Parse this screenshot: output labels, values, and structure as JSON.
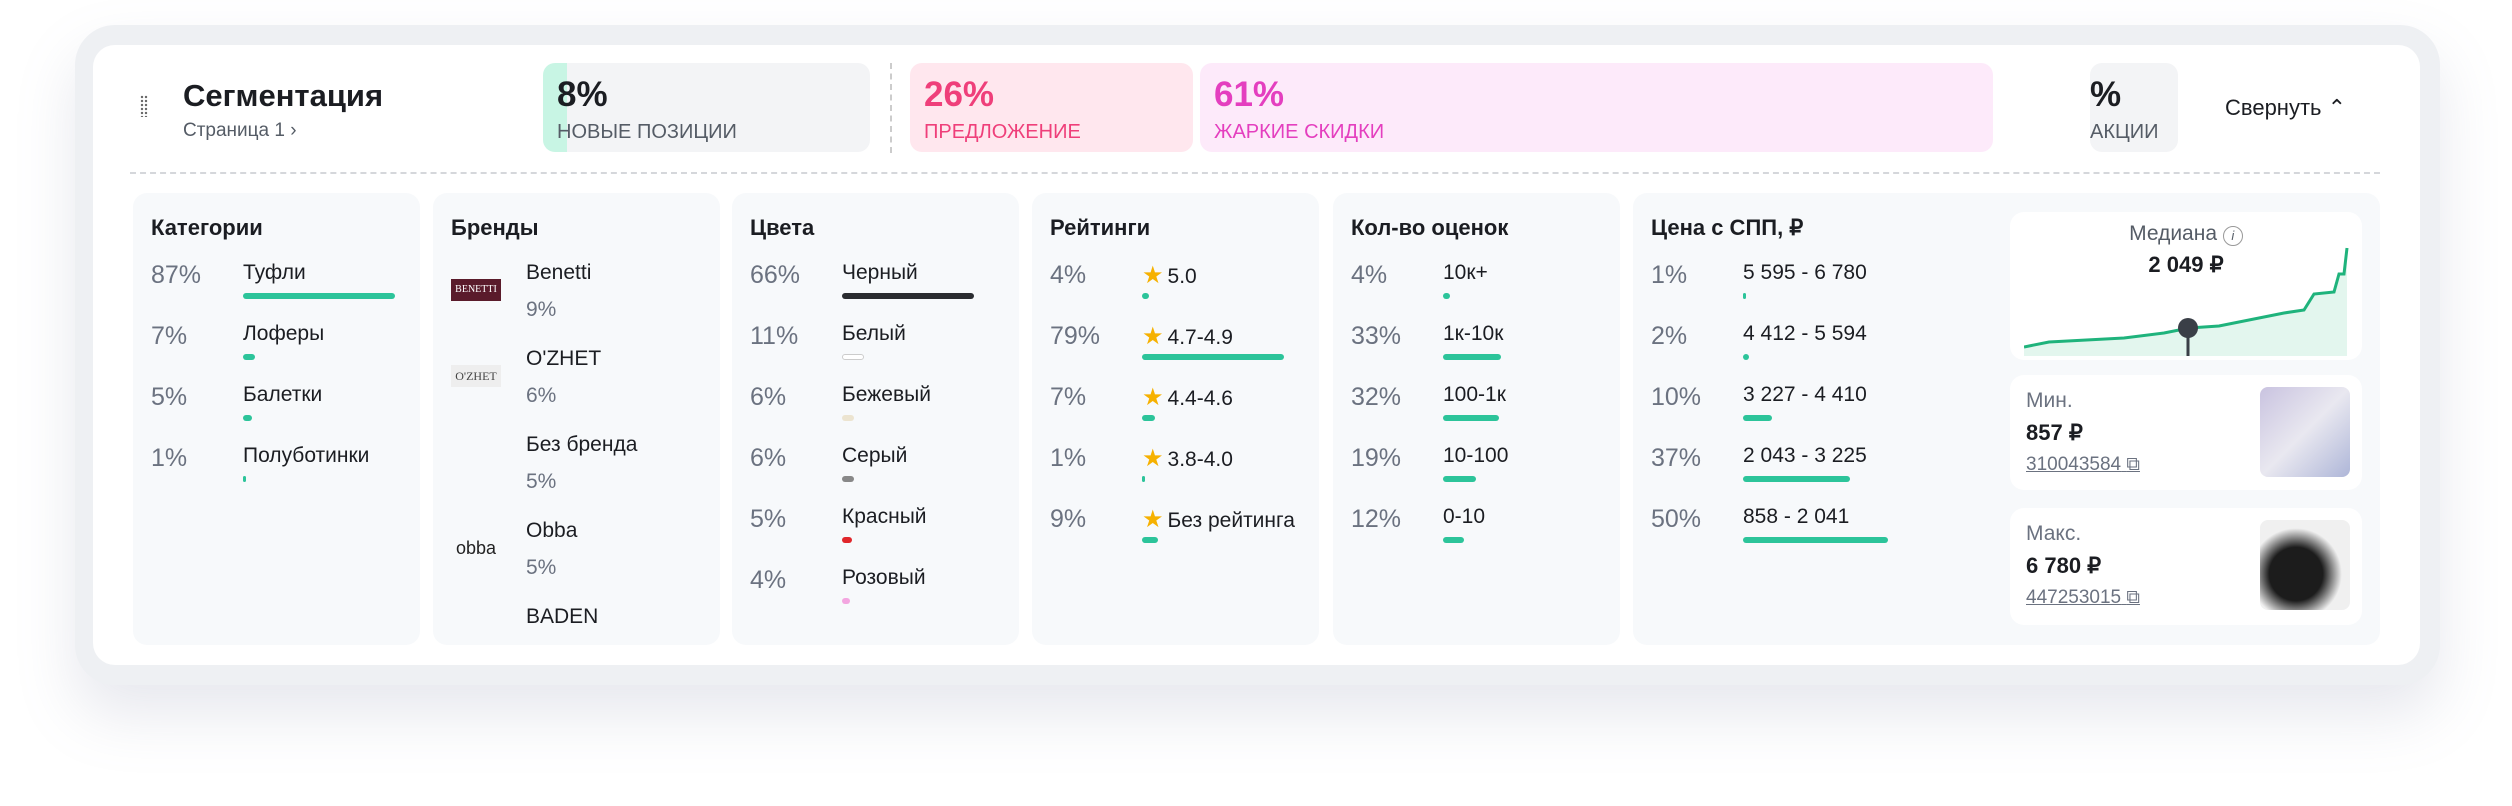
{
  "header": {
    "title": "Сегментация",
    "page": "Страница 1",
    "collapse": "Свернуть"
  },
  "tiles": [
    {
      "value": "8%",
      "label": "НОВЫЕ ПОЗИЦИИ"
    },
    {
      "value": "26%",
      "label": "ПРЕДЛОЖЕНИЕ"
    },
    {
      "value": "61%",
      "label": "ЖАРКИЕ СКИДКИ"
    },
    {
      "value": "%",
      "label": "АКЦИИ"
    }
  ],
  "categories": {
    "title": "Категории",
    "items": [
      {
        "pct": "87%",
        "name": "Туфли",
        "value": 87
      },
      {
        "pct": "7%",
        "name": "Лоферы",
        "value": 7
      },
      {
        "pct": "5%",
        "name": "Балетки",
        "value": 5
      },
      {
        "pct": "1%",
        "name": "Полуботинки",
        "value": 1
      }
    ]
  },
  "brands": {
    "title": "Бренды",
    "items": [
      {
        "name": "Benetti",
        "pct": "9%",
        "logo": "BENETTI"
      },
      {
        "name": "O'ZHET",
        "pct": "6%",
        "logo": "O'ZHET"
      },
      {
        "name": "Без бренда",
        "pct": "5%",
        "logo": ""
      },
      {
        "name": "Obba",
        "pct": "5%",
        "logo": "obba"
      },
      {
        "name": "BADEN",
        "pct": ""
      }
    ]
  },
  "colors": {
    "title": "Цвета",
    "items": [
      {
        "pct": "66%",
        "name": "Черный",
        "value": 66,
        "color": "#2a2c30"
      },
      {
        "pct": "11%",
        "name": "Белый",
        "value": 11,
        "color": "#ffffff"
      },
      {
        "pct": "6%",
        "name": "Бежевый",
        "value": 6,
        "color": "#ece4d0"
      },
      {
        "pct": "6%",
        "name": "Серый",
        "value": 6,
        "color": "#888888"
      },
      {
        "pct": "5%",
        "name": "Красный",
        "value": 5,
        "color": "#e0262b"
      },
      {
        "pct": "4%",
        "name": "Розовый",
        "value": 4,
        "color": "#f3a6e0"
      }
    ]
  },
  "ratings": {
    "title": "Рейтинги",
    "items": [
      {
        "pct": "4%",
        "name": "5.0",
        "value": 4
      },
      {
        "pct": "79%",
        "name": "4.7-4.9",
        "value": 79
      },
      {
        "pct": "7%",
        "name": "4.4-4.6",
        "value": 7
      },
      {
        "pct": "1%",
        "name": "3.8-4.0",
        "value": 1
      },
      {
        "pct": "9%",
        "name": "Без рейтинга",
        "value": 9
      }
    ]
  },
  "reviews": {
    "title": "Кол-во оценок",
    "items": [
      {
        "pct": "4%",
        "name": "10к+",
        "value": 4
      },
      {
        "pct": "33%",
        "name": "1к-10к",
        "value": 33
      },
      {
        "pct": "32%",
        "name": "100-1к",
        "value": 32
      },
      {
        "pct": "19%",
        "name": "10-100",
        "value": 19
      },
      {
        "pct": "12%",
        "name": "0-10",
        "value": 12
      }
    ]
  },
  "price": {
    "title": "Цена с СПП, ₽",
    "items": [
      {
        "pct": "1%",
        "name": "5 595 - 6 780",
        "value": 1
      },
      {
        "pct": "2%",
        "name": "4 412 - 5 594",
        "value": 2
      },
      {
        "pct": "10%",
        "name": "3 227 - 4 410",
        "value": 10
      },
      {
        "pct": "37%",
        "name": "2 043 - 3 225",
        "value": 37
      },
      {
        "pct": "50%",
        "name": "858 - 2 041",
        "value": 50
      }
    ]
  },
  "median": {
    "label": "Медиана",
    "value": "2 049 ₽"
  },
  "min": {
    "label": "Мин.",
    "value": "857 ₽",
    "id": "310043584"
  },
  "max": {
    "label": "Макс.",
    "value": "6 780 ₽",
    "id": "447253015"
  },
  "colors_theme": {
    "accent": "#2cc49a",
    "pink": "#ef3f7a",
    "magenta": "#e43fbf"
  }
}
